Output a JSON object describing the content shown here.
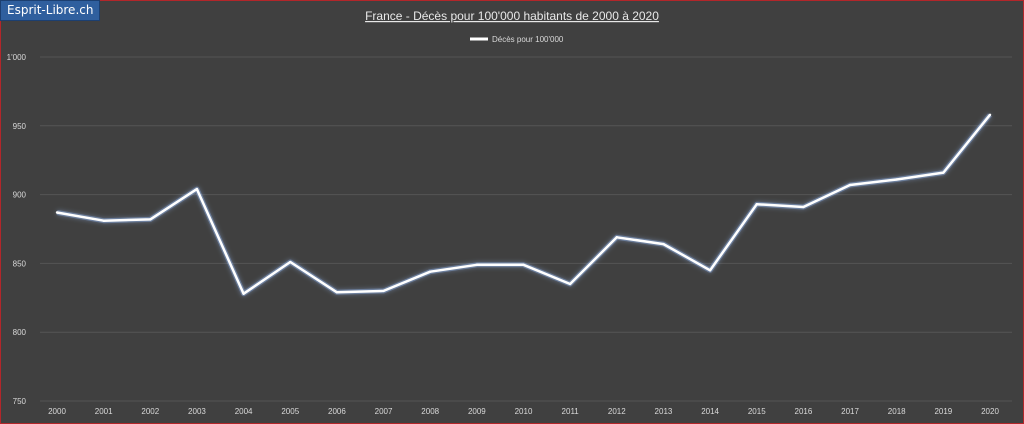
{
  "brand": {
    "label": "Esprit-Libre.ch"
  },
  "colors": {
    "background": "#404040",
    "line": "#ffffff",
    "glow": "#9fc4ff",
    "grid": "#555555",
    "text": "#d9d9d9",
    "border": "#b3262a"
  },
  "chart_data": {
    "type": "line",
    "title": "France - Décès pour 100'000  habitants de 2000  à 2020",
    "xlabel": "",
    "ylabel": "",
    "ylim": [
      750,
      1000
    ],
    "yticks": [
      750,
      800,
      850,
      900,
      950,
      1000
    ],
    "ytick_labels": [
      "750",
      "800",
      "850",
      "900",
      "950",
      "1'000"
    ],
    "grid": true,
    "legend_position": "top-center",
    "categories": [
      "2000",
      "2001",
      "2002",
      "2003",
      "2004",
      "2005",
      "2006",
      "2007",
      "2008",
      "2009",
      "2010",
      "2011",
      "2012",
      "2013",
      "2014",
      "2015",
      "2016",
      "2017",
      "2018",
      "2019",
      "2020"
    ],
    "series": [
      {
        "name": "Décès pour 100'000",
        "values": [
          887,
          881,
          882,
          904,
          828,
          851,
          829,
          830,
          844,
          849,
          849,
          835,
          869,
          864,
          845,
          893,
          891,
          907,
          911,
          916,
          958
        ]
      }
    ]
  }
}
